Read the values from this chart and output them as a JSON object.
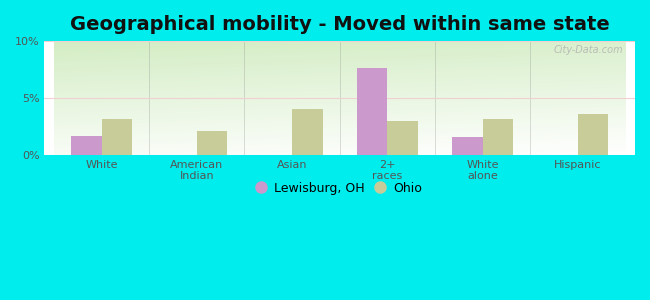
{
  "title": "Geographical mobility - Moved within same state",
  "categories": [
    "White",
    "American\nIndian",
    "Asian",
    "2+\nraces",
    "White\nalone",
    "Hispanic"
  ],
  "lewisburg_values": [
    1.7,
    0,
    0,
    7.6,
    1.6,
    0
  ],
  "ohio_values": [
    3.2,
    2.1,
    4.0,
    3.0,
    3.2,
    3.6
  ],
  "lewisburg_color": "#cc99cc",
  "ohio_color": "#c8cc99",
  "ylim": [
    0,
    10
  ],
  "yticks": [
    0,
    5,
    10
  ],
  "ytick_labels": [
    "0%",
    "5%",
    "10%"
  ],
  "background_color": "#00eded",
  "legend_lewisburg": "Lewisburg, OH",
  "legend_ohio": "Ohio",
  "bar_width": 0.32,
  "title_fontsize": 14,
  "watermark": "City-Data.com"
}
